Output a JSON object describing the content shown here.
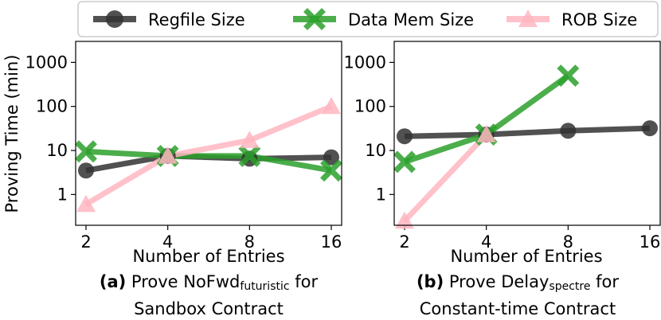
{
  "legend": {
    "items": [
      {
        "label": "Regfile Size",
        "color": "#333333",
        "marker": "circle"
      },
      {
        "label": "Data Mem Size",
        "color": "#2ca02c",
        "marker": "x"
      },
      {
        "label": "ROB Size",
        "color": "#ffb6c1",
        "marker": "triangle"
      }
    ]
  },
  "chart_data": [
    {
      "type": "line",
      "ylabel": "Proving Time (min)",
      "xlabel": "Number of Entries",
      "x": [
        2,
        4,
        8,
        16
      ],
      "x_ticks": [
        "2",
        "4",
        "8",
        "16"
      ],
      "y_scale": "log",
      "y_ticks": [
        "1",
        "10",
        "100",
        "1000"
      ],
      "ylim": [
        0.2,
        3000
      ],
      "series": [
        {
          "name": "Regfile Size",
          "values": [
            3.5,
            7.5,
            6.5,
            7
          ]
        },
        {
          "name": "Data Mem Size",
          "values": [
            9.5,
            7.5,
            7.5,
            3.5
          ]
        },
        {
          "name": "ROB Size",
          "values": [
            0.6,
            7.5,
            17,
            100
          ]
        }
      ],
      "caption": {
        "label": "(a)",
        "prefix": "Prove NoFwd",
        "sub": "futuristic",
        "suffix": " for",
        "line2": "Sandbox Contract"
      }
    },
    {
      "type": "line",
      "ylabel": "",
      "xlabel": "Number of Entries",
      "x": [
        2,
        4,
        8,
        16
      ],
      "x_ticks": [
        "2",
        "4",
        "8",
        "16"
      ],
      "y_scale": "log",
      "y_ticks": [
        "1",
        "10",
        "100",
        "1000"
      ],
      "ylim": [
        0.2,
        3000
      ],
      "series": [
        {
          "name": "Regfile Size",
          "values": [
            21,
            23,
            28,
            32
          ]
        },
        {
          "name": "Data Mem Size",
          "values": [
            5.5,
            23,
            500,
            null
          ]
        },
        {
          "name": "ROB Size",
          "values": [
            0.25,
            23,
            null,
            null
          ]
        }
      ],
      "caption": {
        "label": "(b)",
        "prefix": "Prove Delay",
        "sub": "spectre",
        "suffix": " for",
        "line2": "Constant-time Contract"
      }
    }
  ]
}
